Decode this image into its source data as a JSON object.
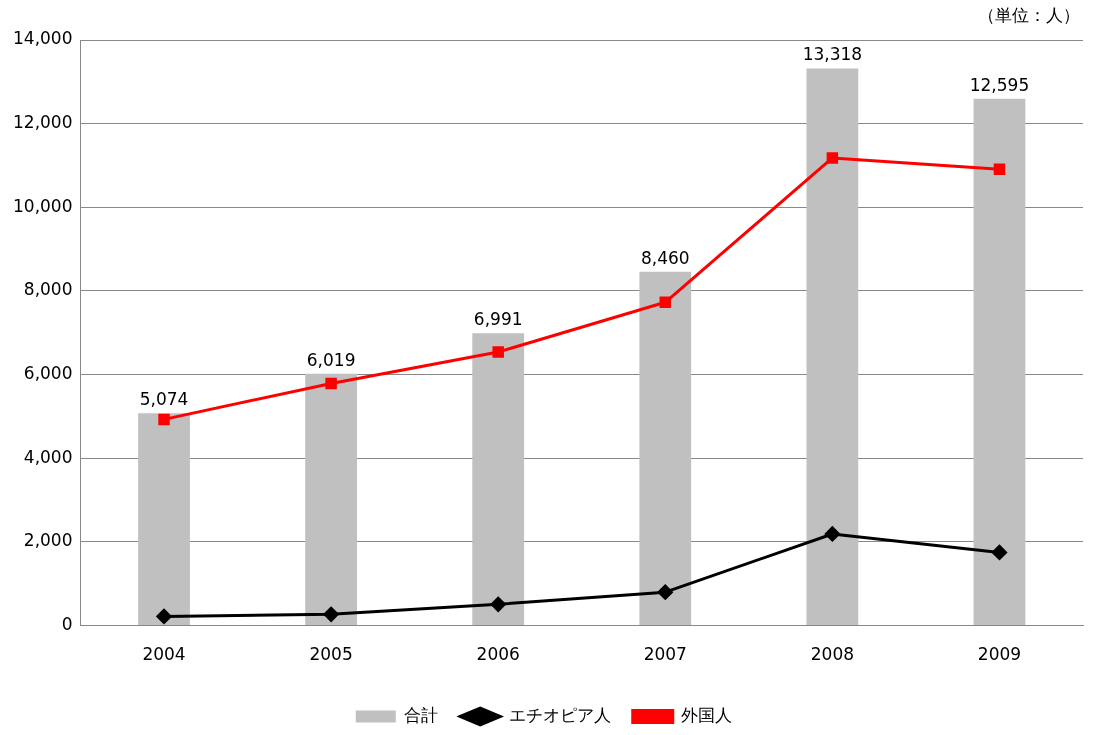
{
  "chart_data": {
    "type": "bar",
    "categories": [
      "2004",
      "2005",
      "2006",
      "2007",
      "2008",
      "2009"
    ],
    "series": [
      {
        "name": "合計",
        "color": "#c0c0c0",
        "values": [
          5074,
          6019,
          6991,
          8460,
          13318,
          12595
        ],
        "value_labels": [
          "5,074",
          "6,019",
          "6,991",
          "8,460",
          "13,318",
          "12,595"
        ]
      },
      {
        "name": "エチオピア人",
        "type": "line",
        "color": "#000000",
        "marker": "diamond",
        "values": [
          220,
          270,
          510,
          800,
          2190,
          1750
        ]
      },
      {
        "name": "外国人",
        "type": "line",
        "color": "#ff0000",
        "marker": "square",
        "values": [
          4930,
          5790,
          6540,
          7730,
          11180,
          10910
        ]
      }
    ],
    "ylim": [
      0,
      14000
    ],
    "yticks": [
      0,
      {
        "value": 2000,
        "label": "2,000"
      },
      {
        "value": 4000,
        "label": "4,000"
      },
      {
        "value": 6000,
        "label": "6,000"
      },
      {
        "value": 8000,
        "label": "8,000"
      },
      {
        "value": 10000,
        "label": "10,000"
      },
      {
        "value": 12000,
        "label": "12,000"
      },
      {
        "value": 14000,
        "label": "14,000"
      }
    ],
    "grid": "y",
    "legend": "bottom",
    "annotations": [
      "（単位：人）"
    ]
  }
}
